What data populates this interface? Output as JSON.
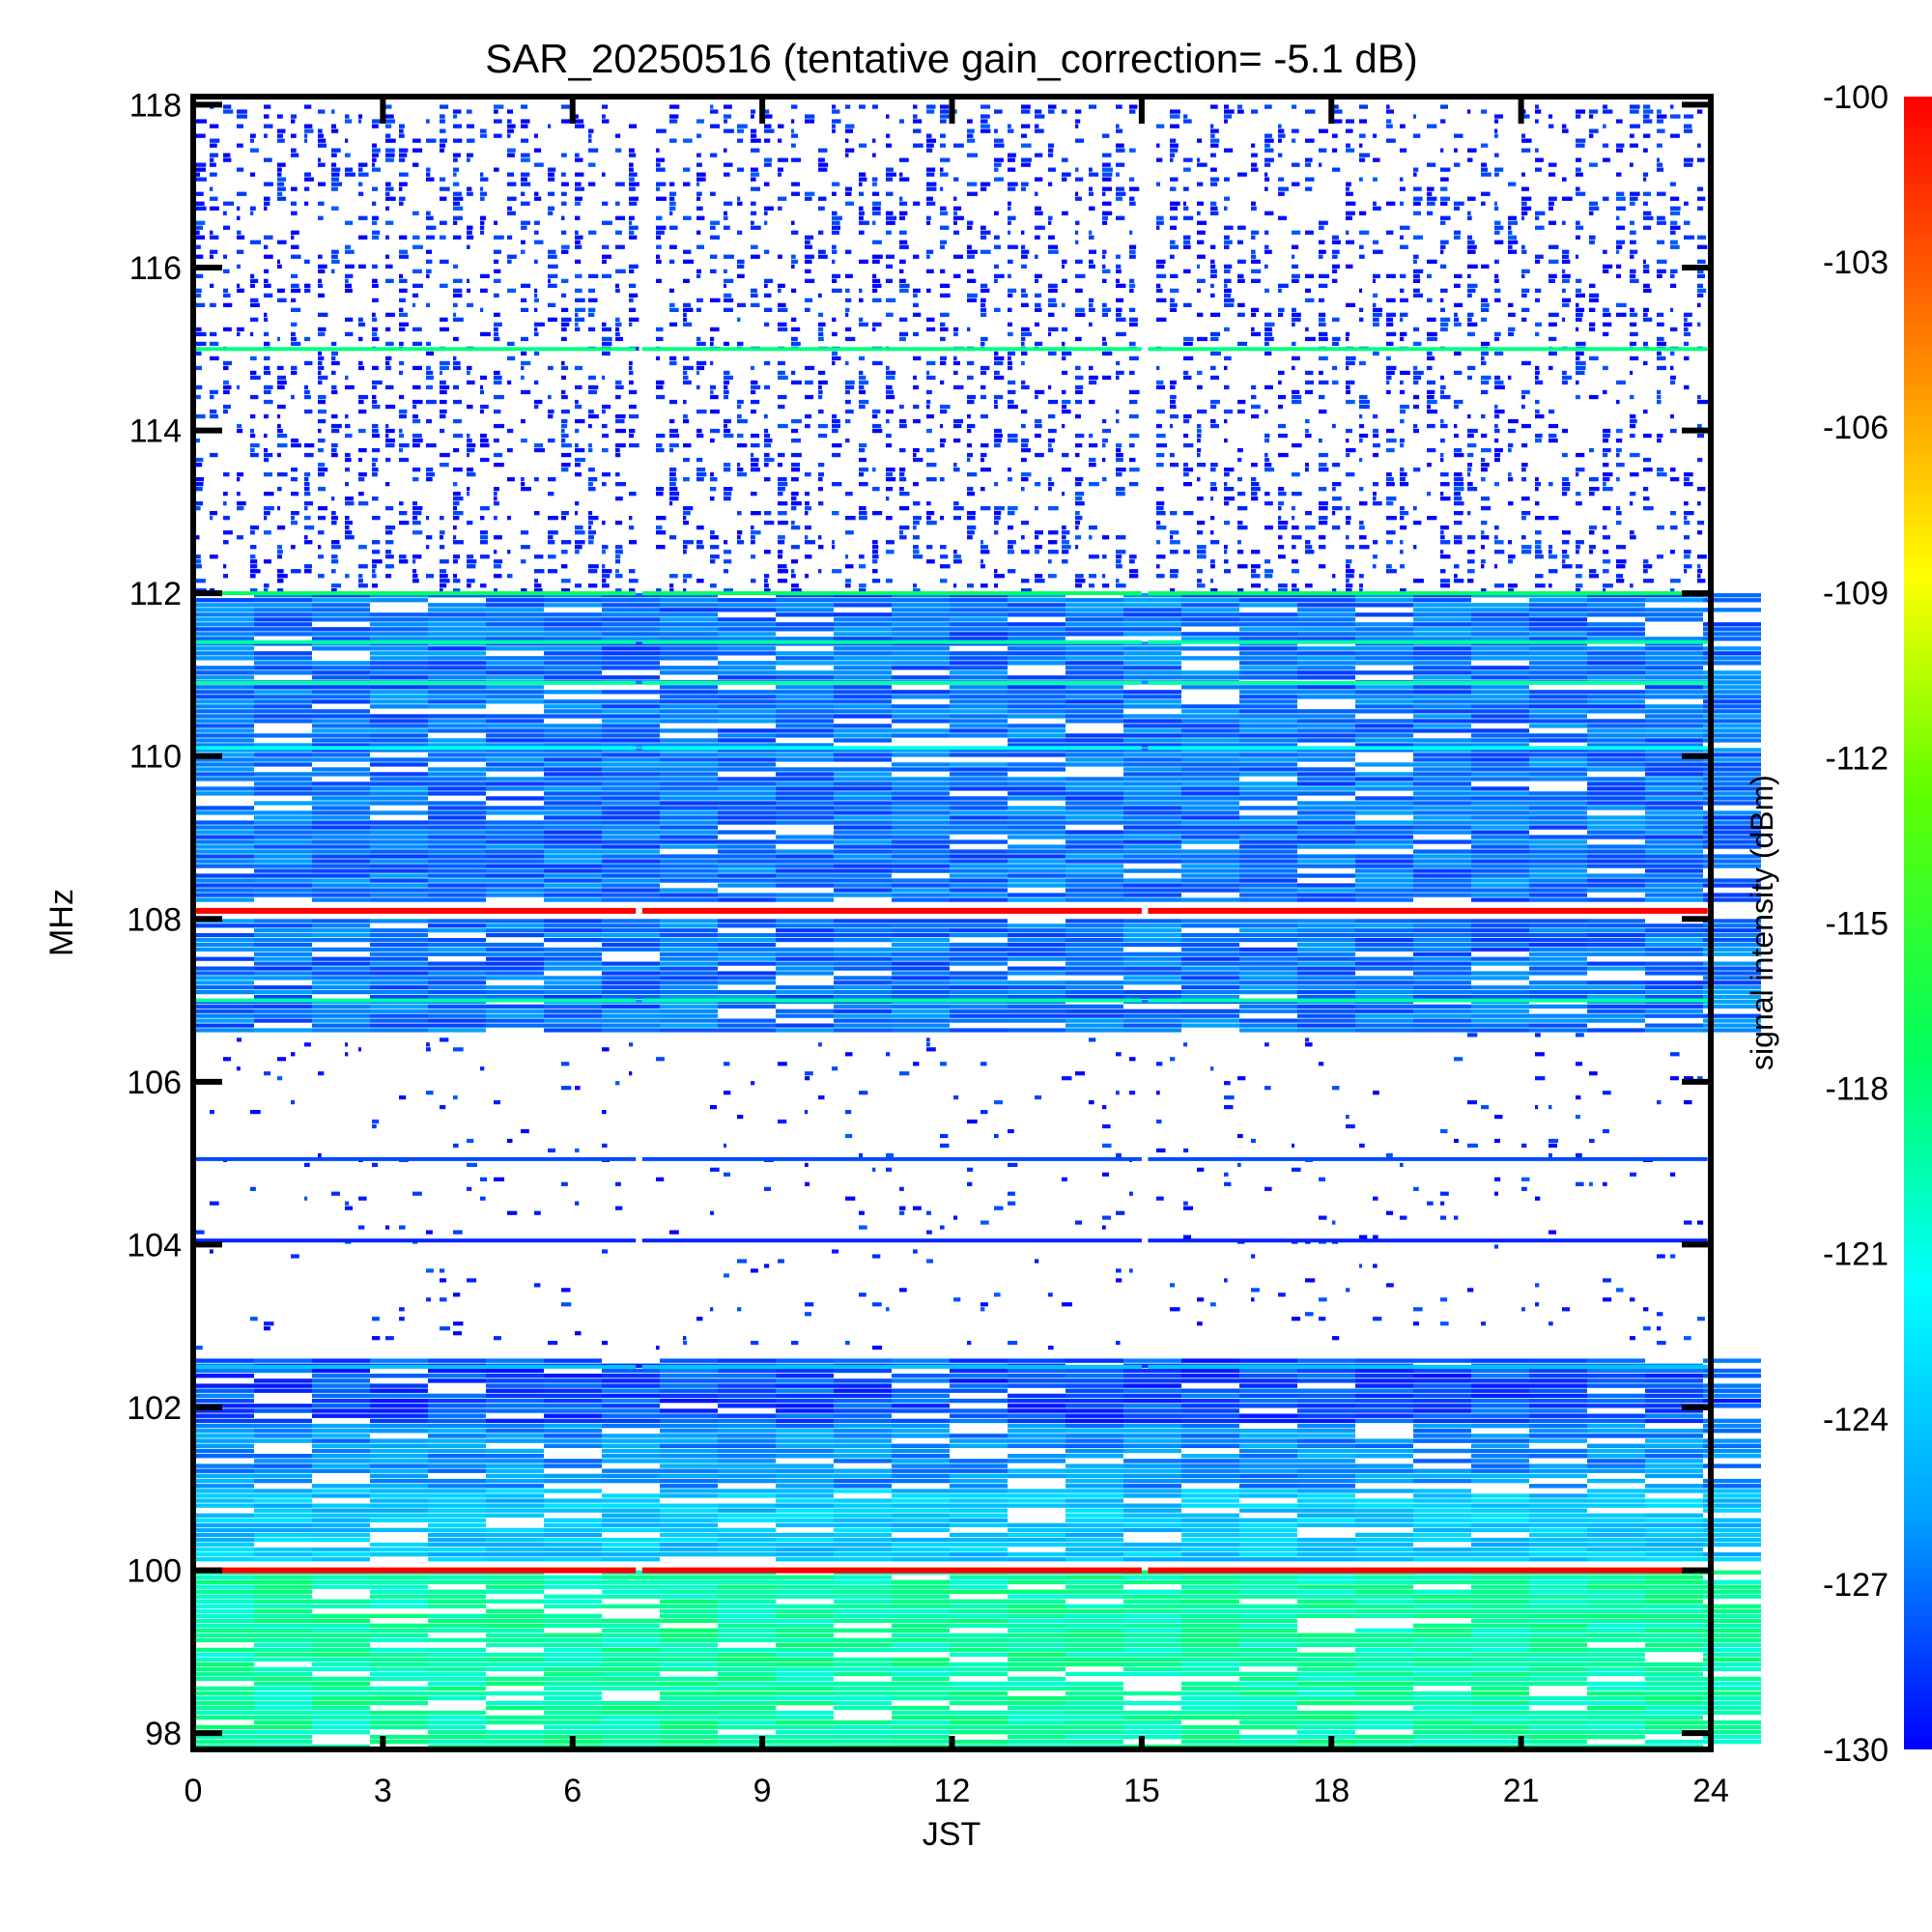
{
  "chart_data": {
    "type": "heatmap",
    "title": "SAR_20250516 (tentative gain_correction= -5.1 dB)",
    "xlabel": "JST",
    "ylabel": "MHz",
    "colorbar_label": "signal intensity (dBm)",
    "xlim": [
      0,
      24
    ],
    "ylim": [
      97.8,
      118.1
    ],
    "x_ticks": [
      0,
      3,
      6,
      9,
      12,
      15,
      18,
      21,
      24
    ],
    "y_ticks": [
      98,
      100,
      102,
      104,
      106,
      108,
      110,
      112,
      114,
      116,
      118
    ],
    "x_tick_labels": [
      "0",
      "3",
      "6",
      "9",
      "12",
      "15",
      "18",
      "21",
      "24"
    ],
    "y_tick_labels": [
      "98",
      "100",
      "102",
      "104",
      "106",
      "108",
      "110",
      "112",
      "114",
      "116",
      "118"
    ],
    "colorbar_range": [
      -130,
      -100
    ],
    "colorbar_ticks": [
      -100,
      -103,
      -106,
      -109,
      -112,
      -115,
      -118,
      -121,
      -124,
      -127,
      -130
    ],
    "colorbar_tick_labels": [
      "-100",
      "-103",
      "-106",
      "-109",
      "-112",
      "-115",
      "-118",
      "-121",
      "-124",
      "-127",
      "-130"
    ],
    "colormap": [
      "#0000ff",
      "#00a0ff",
      "#00ffff",
      "#00ff60",
      "#60ff00",
      "#ffff00",
      "#ff8000",
      "#ff0000"
    ],
    "data_gaps_jst": [
      7.05,
      15.05
    ],
    "regions": [
      {
        "freq_range": [
          112.0,
          118.0
        ],
        "level_dbm": -129,
        "coverage": "sparse"
      },
      {
        "freq_range": [
          108.2,
          112.0
        ],
        "level_dbm": -127,
        "coverage": "dense"
      },
      {
        "freq_range": [
          106.6,
          108.0
        ],
        "level_dbm": -127,
        "coverage": "dense"
      },
      {
        "freq_range": [
          102.7,
          106.6
        ],
        "level_dbm": -129,
        "coverage": "very_sparse"
      },
      {
        "freq_range": [
          101.8,
          102.6
        ],
        "level_dbm": -128,
        "coverage": "dense"
      },
      {
        "freq_range": [
          101.0,
          101.8
        ],
        "level_dbm": -126,
        "coverage": "dense"
      },
      {
        "freq_range": [
          100.1,
          101.0
        ],
        "level_dbm": -124,
        "coverage": "dense"
      },
      {
        "freq_range": [
          97.8,
          100.0
        ],
        "level_dbm": -119,
        "coverage": "dense"
      }
    ],
    "bands": [
      {
        "freq_mhz": 115.0,
        "level_dbm": -118
      },
      {
        "freq_mhz": 112.0,
        "level_dbm": -117
      },
      {
        "freq_mhz": 111.4,
        "level_dbm": -119
      },
      {
        "freq_mhz": 110.9,
        "level_dbm": -119
      },
      {
        "freq_mhz": 110.1,
        "level_dbm": -121
      },
      {
        "freq_mhz": 108.1,
        "level_dbm": -100
      },
      {
        "freq_mhz": 107.0,
        "level_dbm": -119
      },
      {
        "freq_mhz": 105.05,
        "level_dbm": -128
      },
      {
        "freq_mhz": 104.05,
        "level_dbm": -129
      },
      {
        "freq_mhz": 102.5,
        "level_dbm": -124
      },
      {
        "freq_mhz": 100.0,
        "level_dbm": -100
      }
    ]
  }
}
